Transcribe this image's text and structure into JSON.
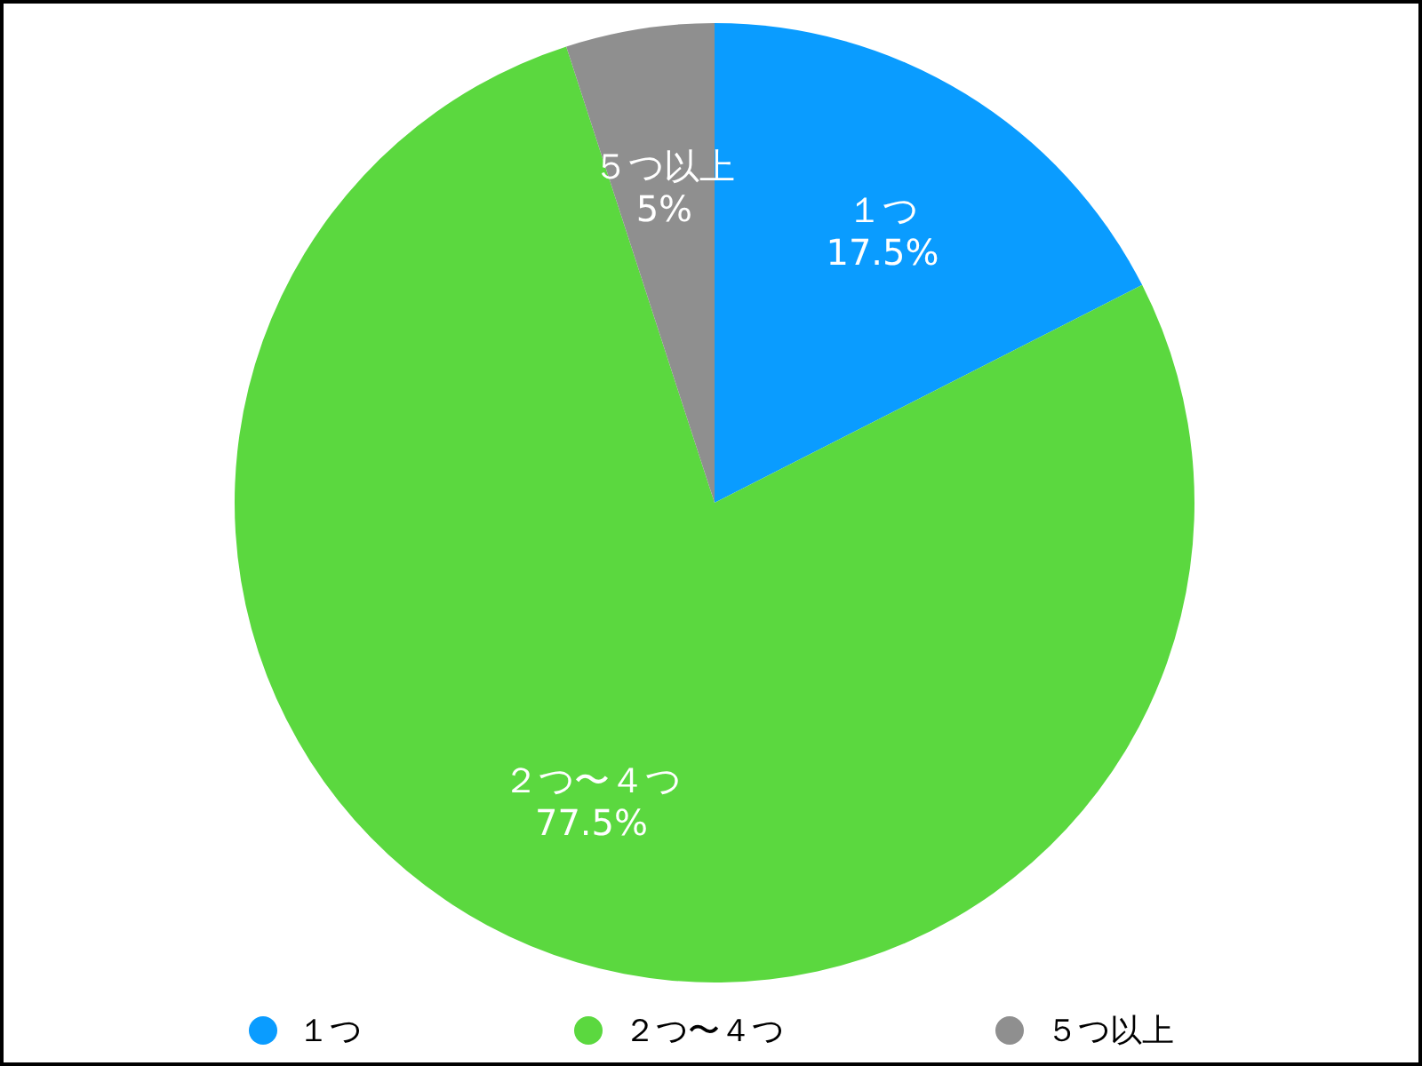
{
  "chart_data": {
    "type": "pie",
    "categories": [
      "１つ",
      "２つ〜４つ",
      "５つ以上"
    ],
    "values": [
      17.5,
      77.5,
      5
    ],
    "value_labels": [
      "17.5%",
      "77.5%",
      "5%"
    ],
    "colors": [
      "#0a9cff",
      "#5bd83f",
      "#8f8f8f"
    ],
    "legend": "bottom"
  }
}
